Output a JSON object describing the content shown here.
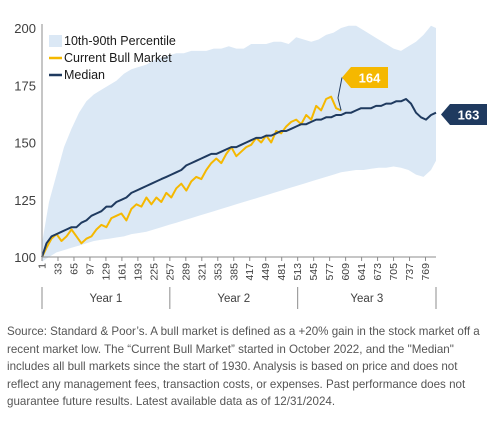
{
  "chart_data": {
    "type": "line",
    "x_ticks": [
      1,
      33,
      65,
      97,
      129,
      161,
      193,
      225,
      257,
      289,
      321,
      353,
      385,
      417,
      449,
      481,
      513,
      545,
      577,
      609,
      641,
      673,
      705,
      737,
      769
    ],
    "xlim": [
      1,
      790
    ],
    "y_ticks": [
      100,
      125,
      150,
      175,
      200
    ],
    "ylim": [
      100,
      200
    ],
    "year_groups": [
      {
        "label": "Year 1",
        "start": 1,
        "end": 257
      },
      {
        "label": "Year 2",
        "start": 257,
        "end": 513
      },
      {
        "label": "Year 3",
        "start": 513,
        "end": 790
      }
    ],
    "legend_position": "top-left",
    "series": [
      {
        "name": "10th-90th Percentile",
        "kind": "band",
        "color": "#dbe8f5",
        "x": [
          1,
          15,
          30,
          45,
          60,
          75,
          90,
          105,
          120,
          135,
          150,
          165,
          180,
          195,
          210,
          225,
          240,
          255,
          270,
          285,
          300,
          315,
          330,
          345,
          360,
          375,
          390,
          405,
          420,
          435,
          450,
          465,
          480,
          495,
          510,
          525,
          540,
          555,
          570,
          585,
          600,
          615,
          630,
          645,
          660,
          675,
          690,
          705,
          720,
          735,
          750,
          765,
          780,
          790
        ],
        "low": [
          98,
          100,
          102,
          103,
          104,
          105,
          106,
          107,
          107.5,
          108,
          108.5,
          109,
          110,
          110.5,
          111,
          112,
          113,
          114,
          115,
          116,
          117,
          118,
          119,
          120,
          121,
          122,
          123,
          124,
          125,
          126,
          127,
          128,
          129,
          130,
          131,
          132,
          133,
          134,
          135,
          136,
          137,
          137.5,
          138,
          138,
          138.5,
          139,
          139,
          139.5,
          139,
          138,
          136,
          135,
          138,
          142
        ],
        "high": [
          106,
          124,
          136,
          148,
          156,
          163,
          168,
          171,
          173,
          175,
          177,
          180,
          182,
          183,
          184,
          186,
          187,
          188,
          189,
          189,
          190,
          190,
          190,
          191,
          191,
          192,
          191,
          191,
          193,
          193,
          193,
          194,
          194,
          193,
          196,
          195,
          194,
          195,
          197,
          198,
          200,
          201,
          201,
          199,
          197,
          195,
          193,
          191,
          190,
          192,
          194,
          197,
          201,
          200
        ]
      },
      {
        "name": "Current Bull Market",
        "kind": "line",
        "color": "#f5b800",
        "x": [
          1,
          10,
          20,
          30,
          40,
          50,
          60,
          70,
          80,
          90,
          100,
          110,
          120,
          130,
          140,
          150,
          160,
          170,
          180,
          190,
          200,
          210,
          220,
          230,
          240,
          250,
          260,
          270,
          280,
          290,
          300,
          310,
          320,
          330,
          340,
          350,
          360,
          370,
          380,
          390,
          400,
          410,
          420,
          430,
          440,
          450,
          460,
          470,
          480,
          490,
          500,
          510,
          520,
          530,
          540,
          550,
          560,
          570,
          580,
          590,
          600
        ],
        "y": [
          100,
          104,
          108,
          110,
          107,
          109,
          112,
          109,
          106,
          108,
          109,
          112,
          114,
          113,
          117,
          118,
          119,
          116,
          121,
          123,
          122,
          126,
          123,
          126,
          124,
          128,
          126,
          130,
          132,
          129,
          133,
          135,
          134,
          138,
          141,
          143,
          141,
          145,
          148,
          144,
          146,
          148,
          149,
          152,
          150,
          153,
          150,
          155,
          154,
          157,
          159,
          160,
          158,
          162,
          160,
          166,
          164,
          169,
          170,
          165,
          164
        ]
      },
      {
        "name": "Median",
        "kind": "line",
        "color": "#1f3a5f",
        "x": [
          1,
          10,
          20,
          30,
          40,
          50,
          60,
          70,
          80,
          90,
          100,
          110,
          120,
          130,
          140,
          150,
          160,
          170,
          180,
          190,
          200,
          210,
          220,
          230,
          240,
          250,
          260,
          270,
          280,
          290,
          300,
          310,
          320,
          330,
          340,
          350,
          360,
          370,
          380,
          390,
          400,
          410,
          420,
          430,
          440,
          450,
          460,
          470,
          480,
          490,
          500,
          510,
          520,
          530,
          540,
          550,
          560,
          570,
          580,
          590,
          600,
          610,
          620,
          630,
          640,
          650,
          660,
          670,
          680,
          690,
          700,
          710,
          720,
          730,
          740,
          750,
          760,
          770,
          780,
          790
        ],
        "y": [
          100,
          106,
          109,
          110,
          111,
          112,
          113,
          113,
          115,
          116,
          118,
          119,
          120,
          122,
          122,
          124,
          125,
          126,
          128,
          129,
          130,
          131,
          132,
          133,
          134,
          135,
          136,
          137,
          138,
          140,
          141,
          142,
          143,
          144,
          145,
          145,
          146,
          147,
          148,
          148,
          149,
          150,
          151,
          152,
          152,
          153,
          153,
          154,
          155,
          155,
          156,
          157,
          158,
          158,
          159,
          160,
          160,
          161,
          161,
          162,
          162,
          163,
          163,
          164,
          165,
          165,
          165,
          166,
          166,
          167,
          167,
          168,
          168,
          169,
          167,
          163,
          161,
          160,
          162,
          163
        ]
      }
    ],
    "callouts": [
      {
        "label": "164",
        "color": "#f5b800",
        "text_color": "#ffffff",
        "series": "Current Bull Market"
      },
      {
        "label": "163",
        "color": "#1f3a5f",
        "text_color": "#ffffff",
        "series": "Median"
      }
    ]
  },
  "footnote": "Source: Standard & Poor’s. A bull market is defined as a +20% gain in the stock market off a recent market low. The “Current Bull Market” started in October 2022, and the \"Median\" includes all bull markets since the start of 1930. Analysis is based on price and does not reflect any management fees, transaction costs, or expenses. Past performance does not guarantee future results. Latest available data as of 12/31/2024."
}
